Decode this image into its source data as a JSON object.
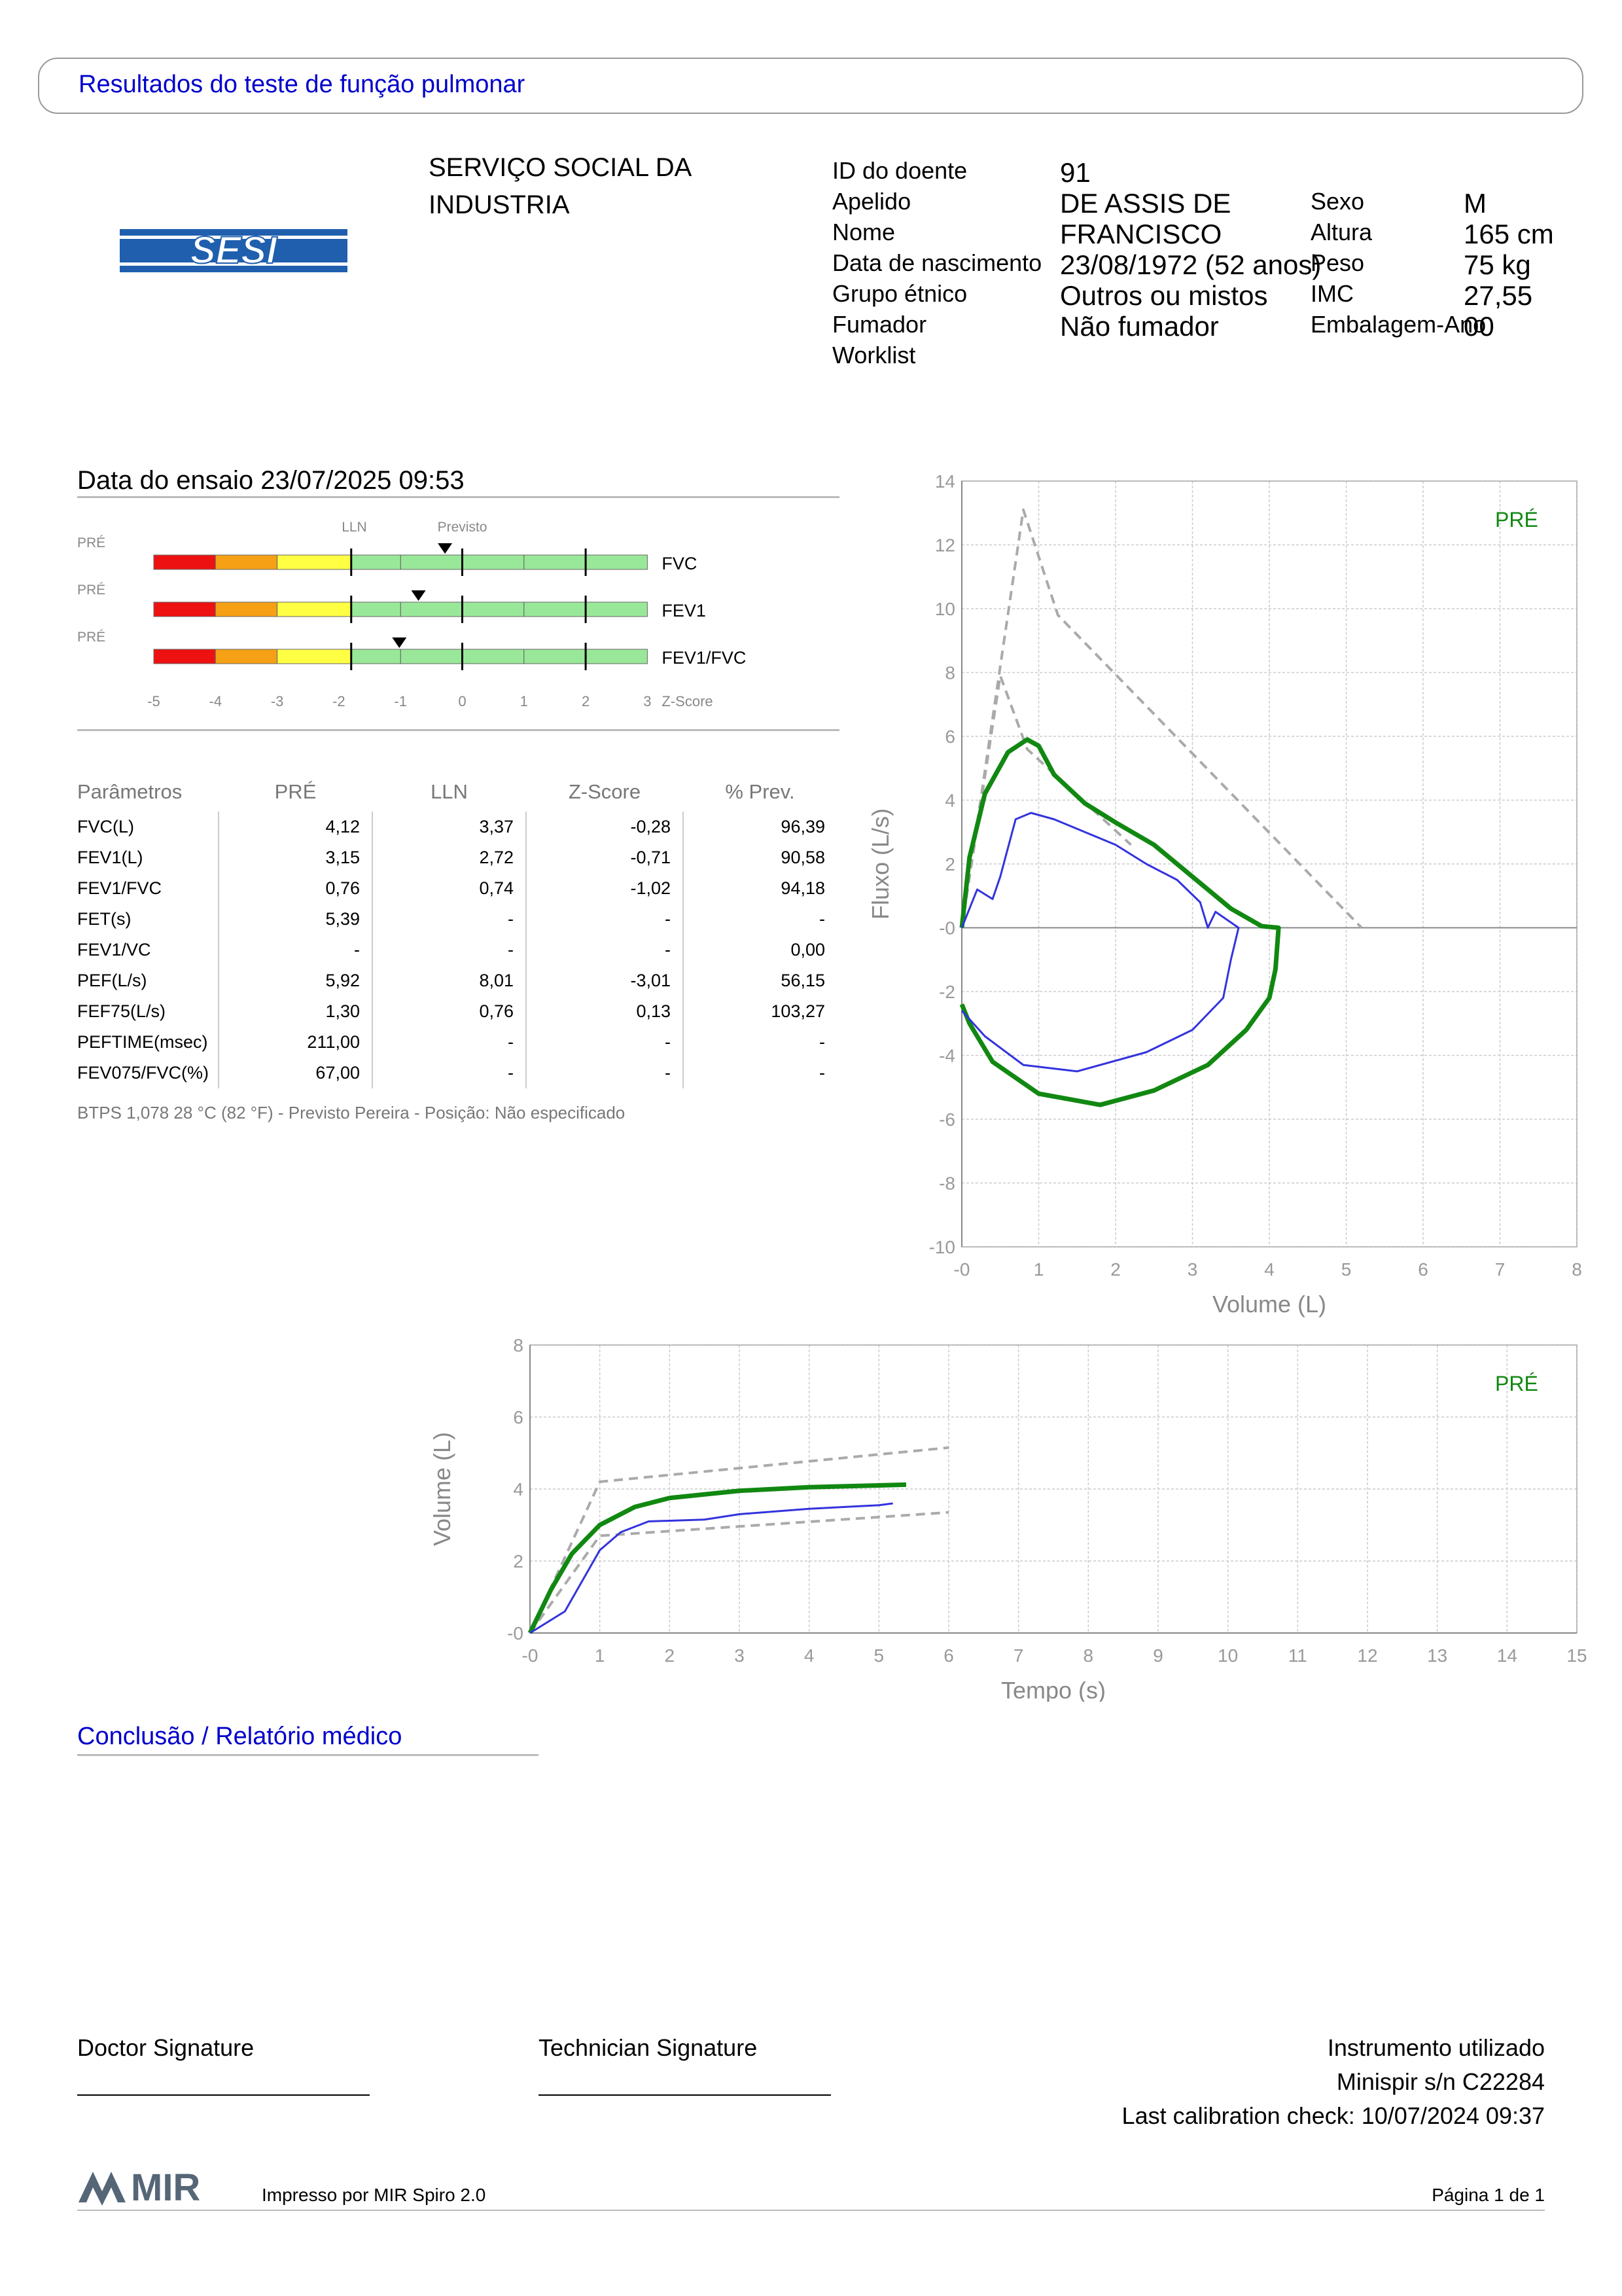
{
  "header": {
    "title": "Resultados do teste de função pulmonar"
  },
  "organization": {
    "line1": "SERVIÇO SOCIAL DA",
    "line2": "INDUSTRIA",
    "logo_text": "SESI"
  },
  "patient": {
    "id_label": "ID do doente",
    "id_value": "91",
    "surname_label": "Apelido",
    "surname_value": "DE ASSIS DE",
    "name_label": "Nome",
    "name_value": "FRANCISCO",
    "dob_label": "Data de nascimento",
    "dob_value": "23/08/1972 (52 anos)",
    "ethnic_label": "Grupo étnico",
    "ethnic_value": "Outros ou mistos",
    "smoker_label": "Fumador",
    "smoker_value": "Não fumador",
    "worklist_label": "Worklist",
    "sex_label": "Sexo",
    "sex_value": "M",
    "height_label": "Altura",
    "height_value": "165 cm",
    "weight_label": "Peso",
    "weight_value": "75 kg",
    "bmi_label": "IMC",
    "bmi_value": "27,55",
    "packyears_label": "Embalagem-Ano",
    "packyears_value": "00"
  },
  "test": {
    "date_label": "Data do ensaio 23/07/2025 09:53"
  },
  "zscore_chart": {
    "lln_label": "LLN",
    "predicted_label": "Previsto",
    "axis_label": "Z-Score",
    "ticks": [
      "-5",
      "-4",
      "-3",
      "-2",
      "-1",
      "0",
      "1",
      "2",
      "3"
    ],
    "rows": [
      {
        "tag": "PRÉ",
        "name": "FVC",
        "z": -0.28
      },
      {
        "tag": "PRÉ",
        "name": "FEV1",
        "z": -0.71
      },
      {
        "tag": "PRÉ",
        "name": "FEV1/FVC",
        "z": -1.02
      }
    ],
    "colors": {
      "red": "#ee1111",
      "orange": "#f5a015",
      "yellow": "#ffff44",
      "green": "#99e899"
    }
  },
  "params": {
    "headers": [
      "Parâmetros",
      "PRÉ",
      "LLN",
      "Z-Score",
      "% Prev."
    ],
    "rows": [
      [
        "FVC(L)",
        "4,12",
        "3,37",
        "-0,28",
        "96,39"
      ],
      [
        "FEV1(L)",
        "3,15",
        "2,72",
        "-0,71",
        "90,58"
      ],
      [
        "FEV1/FVC",
        "0,76",
        "0,74",
        "-1,02",
        "94,18"
      ],
      [
        "FET(s)",
        "5,39",
        "-",
        "-",
        "-"
      ],
      [
        "FEV1/VC",
        "-",
        "-",
        "-",
        "0,00"
      ],
      [
        "PEF(L/s)",
        "5,92",
        "8,01",
        "-3,01",
        "56,15"
      ],
      [
        "FEF75(L/s)",
        "1,30",
        "0,76",
        "0,13",
        "103,27"
      ],
      [
        "PEFTIME(msec)",
        "211,00",
        "-",
        "-",
        "-"
      ],
      [
        "FEV075/FVC(%)",
        "67,00",
        "-",
        "-",
        "-"
      ]
    ],
    "note": "BTPS 1,078 28 °C (82 °F) - Previsto Pereira - Posição: Não especificado"
  },
  "chart_data": [
    {
      "type": "line",
      "xlabel": "Volume (L)",
      "ylabel": "Fluxo (L/s)",
      "xlim": [
        0,
        8
      ],
      "ylim": [
        -10,
        14
      ],
      "xticks": [
        "-0",
        "1",
        "2",
        "3",
        "4",
        "5",
        "6",
        "7",
        "8"
      ],
      "yticks": [
        "14",
        "12",
        "10",
        "8",
        "6",
        "4",
        "2",
        "-0",
        "-2",
        "-4",
        "-6",
        "-8",
        "-10"
      ],
      "legend": "PRÉ",
      "series": [
        {
          "role": "predicted",
          "style": "dashed",
          "color": "#aaaaaa",
          "points": [
            [
              0,
              0
            ],
            [
              0.8,
              13.1
            ],
            [
              1.25,
              9.8
            ],
            [
              5.2,
              0
            ]
          ]
        },
        {
          "role": "predicted",
          "style": "dashed",
          "color": "#aaaaaa",
          "points": [
            [
              0,
              0
            ],
            [
              0.5,
              7.9
            ],
            [
              0.85,
              5.6
            ],
            [
              2.2,
              2.6
            ]
          ]
        },
        {
          "role": "measured-green",
          "style": "solid",
          "color": "#118811",
          "points": [
            [
              0,
              0
            ],
            [
              0.1,
              2.2
            ],
            [
              0.3,
              4.2
            ],
            [
              0.6,
              5.5
            ],
            [
              0.85,
              5.9
            ],
            [
              1.0,
              5.7
            ],
            [
              1.2,
              4.8
            ],
            [
              1.6,
              3.9
            ],
            [
              2.0,
              3.3
            ],
            [
              2.5,
              2.6
            ],
            [
              3.0,
              1.6
            ],
            [
              3.5,
              0.6
            ],
            [
              3.9,
              0.05
            ],
            [
              4.12,
              0
            ],
            [
              4.08,
              -1.3
            ],
            [
              4.0,
              -2.2
            ],
            [
              3.7,
              -3.2
            ],
            [
              3.2,
              -4.3
            ],
            [
              2.5,
              -5.1
            ],
            [
              1.8,
              -5.55
            ],
            [
              1.0,
              -5.2
            ],
            [
              0.4,
              -4.2
            ],
            [
              0.1,
              -3.0
            ],
            [
              0,
              -2.4
            ]
          ]
        },
        {
          "role": "measured-blue",
          "style": "solid",
          "color": "#3333dd",
          "points": [
            [
              0,
              0
            ],
            [
              0.2,
              1.2
            ],
            [
              0.4,
              0.9
            ],
            [
              0.5,
              1.6
            ],
            [
              0.7,
              3.4
            ],
            [
              0.9,
              3.6
            ],
            [
              1.2,
              3.4
            ],
            [
              1.6,
              3.0
            ],
            [
              2.0,
              2.6
            ],
            [
              2.4,
              2.0
            ],
            [
              2.8,
              1.5
            ],
            [
              3.1,
              0.8
            ],
            [
              3.2,
              0
            ],
            [
              3.3,
              0.5
            ],
            [
              3.6,
              0
            ],
            [
              3.5,
              -1.0
            ],
            [
              3.4,
              -2.2
            ],
            [
              3.0,
              -3.2
            ],
            [
              2.4,
              -3.9
            ],
            [
              1.5,
              -4.5
            ],
            [
              0.8,
              -4.3
            ],
            [
              0.3,
              -3.4
            ],
            [
              0,
              -2.6
            ]
          ]
        }
      ]
    },
    {
      "type": "line",
      "xlabel": "Tempo (s)",
      "ylabel": "Volume (L)",
      "xlim": [
        0,
        15
      ],
      "ylim": [
        0,
        8
      ],
      "xticks": [
        "-0",
        "1",
        "2",
        "3",
        "4",
        "5",
        "6",
        "7",
        "8",
        "9",
        "10",
        "11",
        "12",
        "13",
        "14",
        "15"
      ],
      "yticks": [
        "8",
        "6",
        "4",
        "2",
        "-0"
      ],
      "legend": "PRÉ",
      "series": [
        {
          "role": "predicted-upper",
          "style": "dashed",
          "color": "#aaaaaa",
          "points": [
            [
              0,
              0
            ],
            [
              1,
              4.2
            ],
            [
              6,
              5.15
            ]
          ]
        },
        {
          "role": "predicted-lower",
          "style": "dashed",
          "color": "#aaaaaa",
          "points": [
            [
              0,
              0
            ],
            [
              1,
              2.7
            ],
            [
              6,
              3.35
            ]
          ]
        },
        {
          "role": "measured-green",
          "style": "solid",
          "color": "#118811",
          "points": [
            [
              0,
              0
            ],
            [
              0.3,
              1.2
            ],
            [
              0.6,
              2.2
            ],
            [
              1.0,
              3.0
            ],
            [
              1.5,
              3.5
            ],
            [
              2.0,
              3.75
            ],
            [
              3.0,
              3.95
            ],
            [
              4.0,
              4.05
            ],
            [
              5.0,
              4.1
            ],
            [
              5.39,
              4.12
            ]
          ]
        },
        {
          "role": "measured-blue",
          "style": "solid",
          "color": "#3333dd",
          "points": [
            [
              0,
              0
            ],
            [
              0.5,
              0.6
            ],
            [
              1.0,
              2.3
            ],
            [
              1.3,
              2.8
            ],
            [
              1.7,
              3.1
            ],
            [
              2.5,
              3.15
            ],
            [
              3.0,
              3.3
            ],
            [
              4.0,
              3.45
            ],
            [
              5.0,
              3.55
            ],
            [
              5.2,
              3.6
            ]
          ]
        }
      ]
    }
  ],
  "conclusion": {
    "title": "Conclusão / Relatório médico"
  },
  "footer": {
    "doctor_sig": "Doctor Signature",
    "technician_sig": "Technician Signature",
    "instrument_title": "Instrumento utilizado",
    "instrument_model": "Minispir s/n C22284",
    "calibration": "Last calibration check: 10/07/2024 09:37",
    "logo_text": "MIR",
    "printed_by": "Impresso por MIR Spiro 2.0",
    "page": "Página 1 de 1"
  }
}
